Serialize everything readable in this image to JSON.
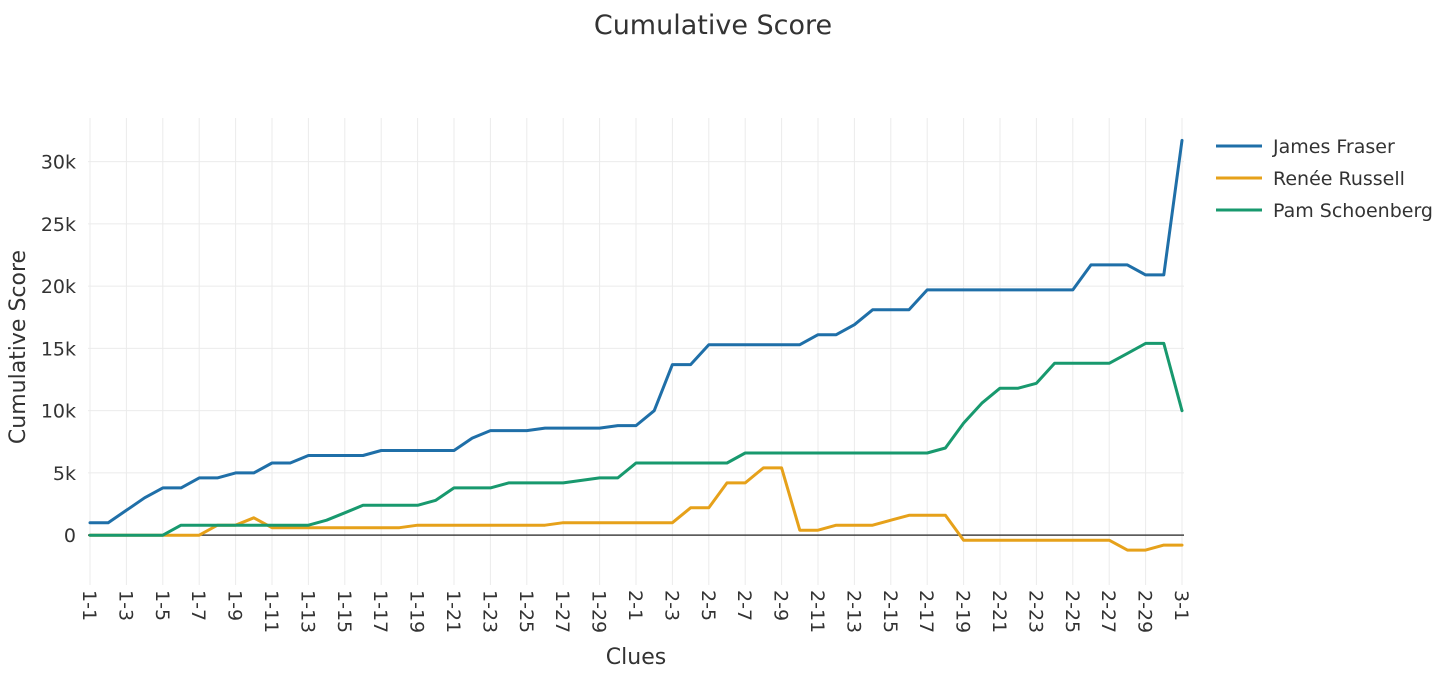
{
  "chart_data": {
    "type": "line",
    "title": "Cumulative Score",
    "xlabel": "Clues",
    "ylabel": "Cumulative Score",
    "ylim": [
      -4000,
      33500
    ],
    "y_ticks": [
      0,
      5000,
      10000,
      15000,
      20000,
      25000,
      30000
    ],
    "y_tick_labels": [
      "0",
      "5k",
      "10k",
      "15k",
      "20k",
      "25k",
      "30k"
    ],
    "grid": true,
    "legend_position": "top-right",
    "categories": [
      "1-1",
      "1-2",
      "1-3",
      "1-4",
      "1-5",
      "1-6",
      "1-7",
      "1-8",
      "1-9",
      "1-10",
      "1-11",
      "1-12",
      "1-13",
      "1-14",
      "1-15",
      "1-16",
      "1-17",
      "1-18",
      "1-19",
      "1-20",
      "1-21",
      "1-22",
      "1-23",
      "1-24",
      "1-25",
      "1-26",
      "1-27",
      "1-28",
      "1-29",
      "1-30",
      "2-1",
      "2-2",
      "2-3",
      "2-4",
      "2-5",
      "2-6",
      "2-7",
      "2-8",
      "2-9",
      "2-10",
      "2-11",
      "2-12",
      "2-13",
      "2-14",
      "2-15",
      "2-16",
      "2-17",
      "2-18",
      "2-19",
      "2-20",
      "2-21",
      "2-22",
      "2-23",
      "2-24",
      "2-25",
      "2-26",
      "2-27",
      "2-28",
      "2-29",
      "2-30",
      "3-1"
    ],
    "tick_labels": [
      "1-1",
      "1-3",
      "1-5",
      "1-7",
      "1-9",
      "1-11",
      "1-13",
      "1-15",
      "1-17",
      "1-19",
      "1-21",
      "1-23",
      "1-25",
      "1-27",
      "1-29",
      "2-1",
      "2-3",
      "2-5",
      "2-7",
      "2-9",
      "2-11",
      "2-13",
      "2-15",
      "2-17",
      "2-19",
      "2-21",
      "2-23",
      "2-25",
      "2-27",
      "2-29",
      "3-1"
    ],
    "series": [
      {
        "name": "James Fraser",
        "color": "#1f6fa8",
        "values": [
          1000,
          1000,
          2000,
          3000,
          3800,
          3800,
          4600,
          4600,
          5000,
          5000,
          5800,
          5800,
          6400,
          6400,
          6400,
          6400,
          6800,
          6800,
          6800,
          6800,
          6800,
          7800,
          8400,
          8400,
          8400,
          8600,
          8600,
          8600,
          8600,
          8800,
          8800,
          10000,
          13700,
          13700,
          15300,
          15300,
          15300,
          15300,
          15300,
          15300,
          16100,
          16100,
          16900,
          18100,
          18100,
          18100,
          19700,
          19700,
          19700,
          19700,
          19700,
          19700,
          19700,
          19700,
          19700,
          21700,
          21700,
          21700,
          20900,
          20900,
          31700
        ]
      },
      {
        "name": "Renée Russell",
        "color": "#e6a11a",
        "values": [
          0,
          0,
          0,
          0,
          0,
          0,
          0,
          800,
          800,
          1400,
          600,
          600,
          600,
          600,
          600,
          600,
          600,
          600,
          800,
          800,
          800,
          800,
          800,
          800,
          800,
          800,
          1000,
          1000,
          1000,
          1000,
          1000,
          1000,
          1000,
          2200,
          2200,
          4200,
          4200,
          5400,
          5400,
          400,
          400,
          800,
          800,
          800,
          1200,
          1600,
          1600,
          1600,
          -400,
          -400,
          -400,
          -400,
          -400,
          -400,
          -400,
          -400,
          -400,
          -1200,
          -1200,
          -800,
          -800
        ]
      },
      {
        "name": "Pam Schoenberg",
        "color": "#18996e",
        "values": [
          0,
          0,
          0,
          0,
          0,
          800,
          800,
          800,
          800,
          800,
          800,
          800,
          800,
          1200,
          1800,
          2400,
          2400,
          2400,
          2400,
          2800,
          3800,
          3800,
          3800,
          4200,
          4200,
          4200,
          4200,
          4400,
          4600,
          4600,
          5800,
          5800,
          5800,
          5800,
          5800,
          5800,
          6600,
          6600,
          6600,
          6600,
          6600,
          6600,
          6600,
          6600,
          6600,
          6600,
          6600,
          7000,
          9000,
          10600,
          11800,
          11800,
          12200,
          13800,
          13800,
          13800,
          13800,
          14600,
          15400,
          15400,
          10000
        ]
      }
    ]
  }
}
